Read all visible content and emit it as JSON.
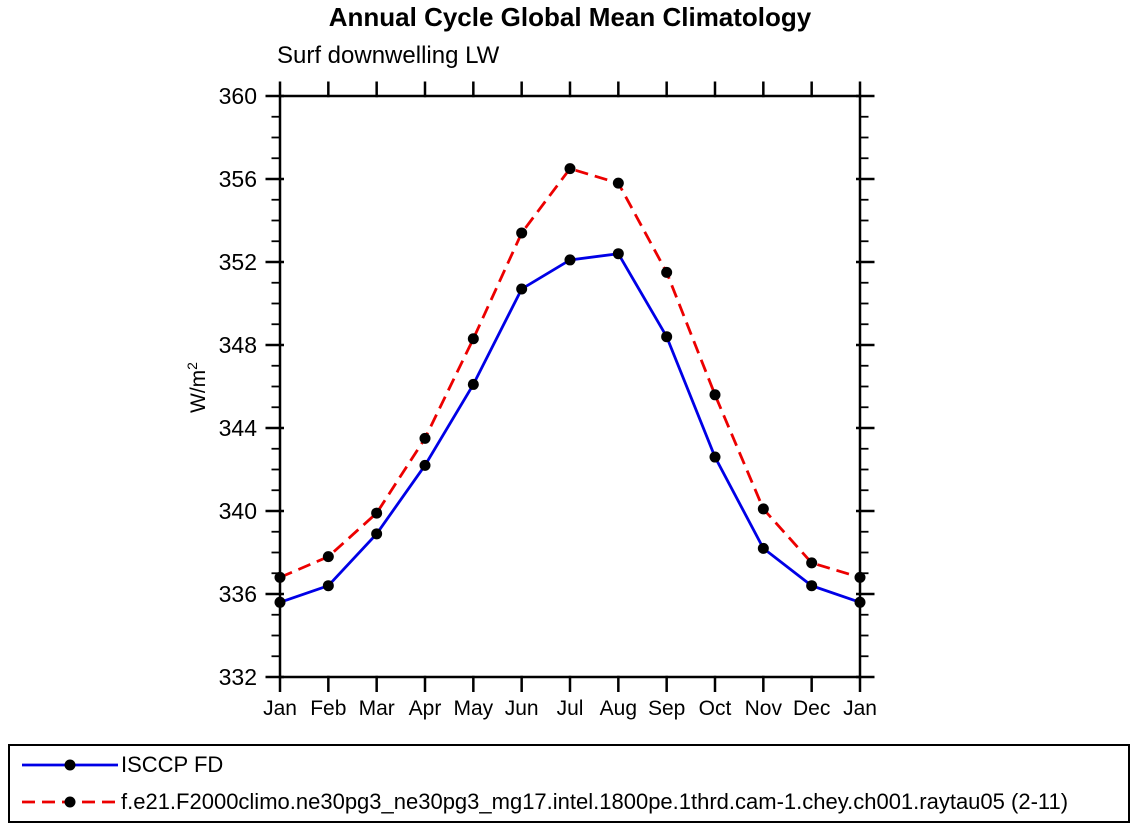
{
  "header": {
    "title": "Annual Cycle Global Mean Climatology",
    "subtitle": "Surf downwelling LW"
  },
  "chart_data": {
    "type": "line",
    "title": "Annual Cycle Global Mean Climatology",
    "subtitle": "Surf downwelling LW",
    "ylabel_base": "W/m",
    "ylabel_sup": "2",
    "x_categories": [
      "Jan",
      "Feb",
      "Mar",
      "Apr",
      "May",
      "Jun",
      "Jul",
      "Aug",
      "Sep",
      "Oct",
      "Nov",
      "Dec",
      "Jan"
    ],
    "ylim": [
      332,
      360
    ],
    "ytick_major_step": 4,
    "ytick_minor_step": 1,
    "ytick_labels": [
      "332",
      "336",
      "340",
      "344",
      "348",
      "352",
      "356",
      "360"
    ],
    "grid": "off",
    "legend_position": "bottom-box",
    "axis_color": "#000000",
    "marker_color": "#000000",
    "series": [
      {
        "name": "ISCCP FD",
        "color": "#0000e6",
        "style": "solid",
        "marker": "circle",
        "values": [
          335.6,
          336.4,
          338.9,
          342.2,
          346.1,
          350.7,
          352.1,
          352.4,
          348.4,
          342.6,
          338.2,
          336.4,
          335.6
        ]
      },
      {
        "name": "f.e21.F2000climo.ne30pg3_ne30pg3_mg17.intel.1800pe.1thrd.cam-1.chey.ch001.raytau05 (2-11)",
        "color": "#ec0000",
        "style": "dashed",
        "marker": "circle",
        "values": [
          336.8,
          337.8,
          339.9,
          343.5,
          348.3,
          353.4,
          356.5,
          355.8,
          351.5,
          345.6,
          340.1,
          337.5,
          336.8
        ]
      }
    ]
  }
}
